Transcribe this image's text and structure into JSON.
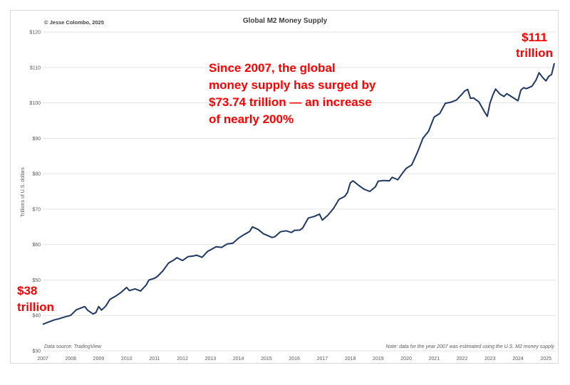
{
  "chart_data": {
    "type": "line",
    "title": "Global M2 Money Supply",
    "copyright": "© Jesse Colombo, 2025",
    "ylabel": "Trillions of U.S. dollars",
    "xlabel": "",
    "ylim": [
      30,
      120
    ],
    "xlim": [
      2007,
      2025.35
    ],
    "yticks": [
      "$30",
      "$40",
      "$50",
      "$60",
      "$70",
      "$80",
      "$90",
      "$100",
      "$110",
      "$120"
    ],
    "xticks": [
      "2007",
      "2008",
      "2009",
      "2010",
      "2011",
      "2012",
      "2013",
      "2014",
      "2015",
      "2016",
      "2017",
      "2018",
      "2019",
      "2020",
      "2021",
      "2022",
      "2023",
      "2024",
      "2025"
    ],
    "grid": "horizontal",
    "line_color": "#1f3864",
    "source": "Data source: TradingView",
    "note": "Note: data for the year 2007 was estimated using the U.S. M2 money supply",
    "annotations": {
      "main": [
        "Since 2007, the global",
        "money supply has surged by",
        "$73.74 trillion — an increase",
        "of nearly 200%"
      ],
      "start": [
        "$38",
        "trillion"
      ],
      "end": [
        "$111",
        "trillion"
      ]
    },
    "series": [
      {
        "x": [
          2007.0,
          2007.2,
          2007.4,
          2007.6,
          2007.8,
          2008.0,
          2008.2,
          2008.4,
          2008.5,
          2008.6,
          2008.8,
          2008.9,
          2009.0,
          2009.1,
          2009.25,
          2009.4,
          2009.6,
          2009.8,
          2010.0,
          2010.1,
          2010.3,
          2010.5,
          2010.7,
          2010.8,
          2011.0,
          2011.1,
          2011.3,
          2011.5,
          2011.7,
          2011.8,
          2012.0,
          2012.2,
          2012.4,
          2012.5,
          2012.7,
          2012.9,
          2013.0,
          2013.2,
          2013.4,
          2013.6,
          2013.8,
          2014.0,
          2014.2,
          2014.4,
          2014.5,
          2014.7,
          2014.9,
          2015.0,
          2015.2,
          2015.3,
          2015.5,
          2015.7,
          2015.9,
          2016.0,
          2016.2,
          2016.3,
          2016.5,
          2016.7,
          2016.9,
          2017.0,
          2017.2,
          2017.4,
          2017.6,
          2017.8,
          2017.9,
          2018.0,
          2018.1,
          2018.3,
          2018.5,
          2018.7,
          2018.9,
          2019.0,
          2019.2,
          2019.4,
          2019.5,
          2019.7,
          2019.9,
          2020.0,
          2020.2,
          2020.4,
          2020.6,
          2020.8,
          2021.0,
          2021.2,
          2021.4,
          2021.6,
          2021.8,
          2022.0,
          2022.1,
          2022.2,
          2022.3,
          2022.4,
          2022.6,
          2022.8,
          2022.9,
          2023.0,
          2023.1,
          2023.2,
          2023.35,
          2023.5,
          2023.6,
          2023.8,
          2024.0,
          2024.1,
          2024.2,
          2024.3,
          2024.5,
          2024.65,
          2024.75,
          2024.9,
          2025.0,
          2025.1,
          2025.2,
          2025.3
        ],
        "y": [
          37.5,
          38.1,
          38.7,
          39.1,
          39.6,
          40.0,
          41.6,
          42.2,
          42.5,
          41.5,
          40.4,
          40.8,
          42.5,
          41.5,
          42.6,
          44.5,
          45.4,
          46.5,
          47.9,
          47.0,
          47.5,
          46.9,
          48.6,
          50.0,
          50.5,
          51.0,
          52.6,
          54.8,
          55.7,
          56.3,
          55.5,
          56.6,
          56.8,
          57.0,
          56.4,
          58.1,
          58.5,
          59.4,
          59.2,
          60.2,
          60.4,
          61.8,
          62.8,
          63.7,
          65.0,
          64.3,
          63.0,
          62.7,
          62.0,
          62.2,
          63.6,
          63.9,
          63.4,
          64.0,
          64.1,
          64.7,
          67.5,
          67.9,
          68.6,
          66.9,
          68.3,
          70.2,
          72.8,
          73.6,
          74.7,
          77.4,
          78.0,
          76.7,
          75.6,
          75.0,
          76.3,
          77.9,
          78.1,
          78.0,
          79.0,
          78.3,
          80.5,
          81.5,
          82.5,
          86.0,
          90.0,
          92.0,
          96.0,
          97.0,
          99.9,
          100.2,
          100.8,
          102.5,
          103.4,
          103.8,
          101.3,
          101.4,
          100.3,
          97.5,
          96.2,
          100.0,
          102.2,
          103.9,
          102.5,
          101.8,
          102.6,
          101.6,
          100.6,
          103.6,
          104.3,
          104.0,
          104.7,
          106.5,
          108.5,
          107.0,
          106.2,
          107.5,
          108.0,
          111.2
        ]
      }
    ]
  }
}
